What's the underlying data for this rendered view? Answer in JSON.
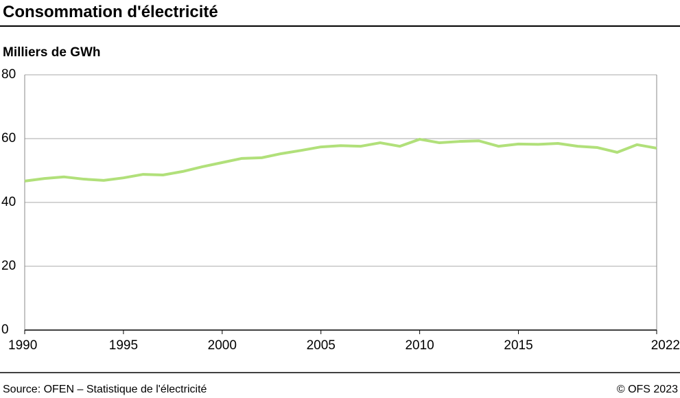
{
  "chart_data": {
    "type": "line",
    "title": "Consommation d'électricité",
    "y_label": "Milliers de GWh",
    "x": [
      1990,
      1991,
      1992,
      1993,
      1994,
      1995,
      1996,
      1997,
      1998,
      1999,
      2000,
      2001,
      2002,
      2003,
      2004,
      2005,
      2006,
      2007,
      2008,
      2009,
      2010,
      2011,
      2012,
      2013,
      2014,
      2015,
      2016,
      2017,
      2018,
      2019,
      2020,
      2021,
      2022
    ],
    "series": [
      {
        "name": "Consommation d'électricité",
        "color": "#b1e07a",
        "values": [
          46.7,
          47.5,
          48.0,
          47.3,
          46.9,
          47.7,
          48.8,
          48.6,
          49.7,
          51.2,
          52.5,
          53.8,
          54.0,
          55.3,
          56.3,
          57.4,
          57.8,
          57.6,
          58.7,
          57.6,
          59.8,
          58.7,
          59.1,
          59.3,
          57.6,
          58.3,
          58.2,
          58.5,
          57.6,
          57.2,
          55.7,
          58.1,
          57.0
        ]
      }
    ],
    "xlim": [
      1990,
      2022
    ],
    "xticks": [
      1990,
      1995,
      2000,
      2005,
      2010,
      2015,
      2022
    ],
    "ylim": [
      0,
      80
    ],
    "yticks": [
      0,
      20,
      40,
      60,
      80
    ],
    "grid": true,
    "source": "Source: OFEN – Statistique de l'électricité",
    "copyright": "© OFS 2023"
  }
}
